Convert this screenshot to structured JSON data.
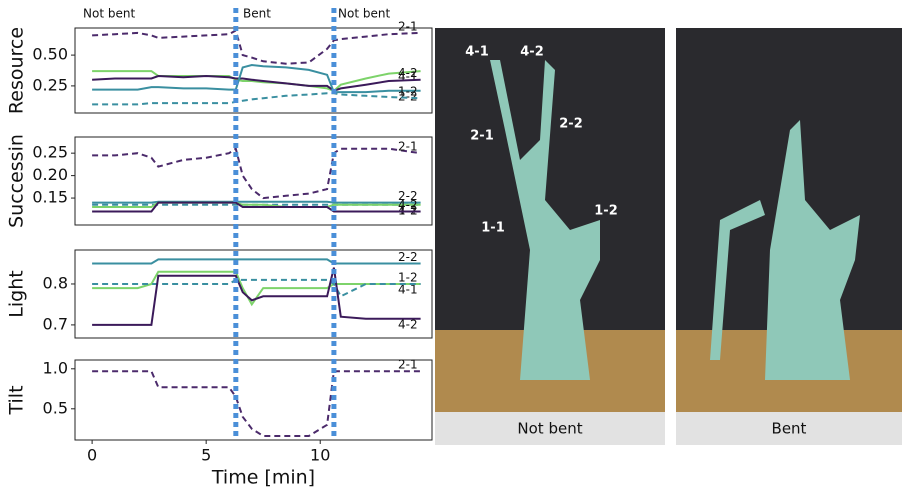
{
  "chart_data": [
    {
      "type": "line",
      "ylabel": "Resource",
      "xlim": [
        -0.75,
        14.9
      ],
      "ylim": [
        0.03,
        0.72
      ],
      "yticks": [
        0.25,
        {
          "value": 0.5,
          "label": "0.50"
        }
      ],
      "x": [
        0,
        1,
        2,
        2.6,
        2.9,
        4,
        5,
        6,
        6.3,
        6.6,
        7,
        7.5,
        8.5,
        9.5,
        10.3,
        10.6,
        10.9,
        12,
        13,
        14.4
      ],
      "series": [
        {
          "name": "2-1",
          "color": "#4b2a6b",
          "dashed": true,
          "values": [
            0.66,
            0.67,
            0.68,
            0.66,
            0.64,
            0.65,
            0.66,
            0.67,
            0.7,
            0.5,
            0.48,
            0.45,
            0.43,
            0.44,
            0.55,
            0.62,
            0.63,
            0.65,
            0.67,
            0.68
          ]
        },
        {
          "name": "4-1",
          "color": "#7dd36a",
          "dashed": false,
          "values": [
            0.37,
            0.37,
            0.37,
            0.37,
            0.33,
            0.33,
            0.33,
            0.33,
            0.3,
            0.29,
            0.29,
            0.28,
            0.27,
            0.25,
            0.23,
            0.21,
            0.26,
            0.31,
            0.35,
            0.37
          ]
        },
        {
          "name": "4-2",
          "color": "#3b1a5a",
          "dashed": false,
          "values": [
            0.3,
            0.31,
            0.31,
            0.31,
            0.33,
            0.32,
            0.33,
            0.32,
            0.31,
            0.31,
            0.3,
            0.29,
            0.27,
            0.25,
            0.25,
            0.21,
            0.23,
            0.26,
            0.29,
            0.3
          ]
        },
        {
          "name": "2-2",
          "color": "#3a8fa0",
          "dashed": false,
          "values": [
            0.22,
            0.22,
            0.22,
            0.24,
            0.24,
            0.23,
            0.23,
            0.22,
            0.22,
            0.4,
            0.42,
            0.41,
            0.4,
            0.38,
            0.34,
            0.2,
            0.2,
            0.2,
            0.21,
            0.21
          ]
        },
        {
          "name": "1-2",
          "color": "#3a8fa0",
          "dashed": true,
          "values": [
            0.1,
            0.1,
            0.1,
            0.11,
            0.11,
            0.11,
            0.11,
            0.11,
            0.12,
            0.13,
            0.14,
            0.15,
            0.17,
            0.18,
            0.19,
            0.19,
            0.18,
            0.17,
            0.16,
            0.15
          ]
        }
      ]
    },
    {
      "type": "line",
      "ylabel": "Successin",
      "xlim": [
        -0.75,
        14.9
      ],
      "ylim": [
        0.09,
        0.286
      ],
      "yticks": [
        0.15,
        {
          "value": 0.2,
          "label": "0.20"
        },
        0.25
      ],
      "x": [
        0,
        1,
        2,
        2.6,
        2.9,
        4,
        5,
        6,
        6.3,
        6.6,
        7,
        7.5,
        8.5,
        9.5,
        10.3,
        10.6,
        10.9,
        12,
        13,
        14.4
      ],
      "series": [
        {
          "name": "2-1",
          "color": "#4b2a6b",
          "dashed": true,
          "values": [
            0.245,
            0.245,
            0.25,
            0.24,
            0.22,
            0.235,
            0.24,
            0.25,
            0.26,
            0.2,
            0.17,
            0.15,
            0.155,
            0.16,
            0.17,
            0.25,
            0.26,
            0.26,
            0.26,
            0.25
          ]
        },
        {
          "name": "1-2",
          "color": "#3a8fa0",
          "dashed": true,
          "values": [
            0.135,
            0.135,
            0.135,
            0.135,
            0.135,
            0.135,
            0.135,
            0.135,
            0.135,
            0.135,
            0.135,
            0.135,
            0.135,
            0.135,
            0.135,
            0.135,
            0.135,
            0.135,
            0.135,
            0.135
          ]
        },
        {
          "name": "2-2",
          "color": "#3a8fa0",
          "dashed": false,
          "values": [
            0.14,
            0.14,
            0.14,
            0.14,
            0.142,
            0.142,
            0.142,
            0.142,
            0.142,
            0.142,
            0.142,
            0.142,
            0.142,
            0.142,
            0.142,
            0.14,
            0.14,
            0.14,
            0.14,
            0.14
          ]
        },
        {
          "name": "4-1",
          "color": "#7dd36a",
          "dashed": false,
          "values": [
            0.13,
            0.13,
            0.13,
            0.13,
            0.14,
            0.14,
            0.14,
            0.14,
            0.14,
            0.135,
            0.135,
            0.135,
            0.13,
            0.13,
            0.13,
            0.135,
            0.135,
            0.135,
            0.135,
            0.135
          ]
        },
        {
          "name": "4-2",
          "color": "#3b1a5a",
          "dashed": false,
          "values": [
            0.12,
            0.12,
            0.12,
            0.12,
            0.14,
            0.14,
            0.14,
            0.14,
            0.14,
            0.13,
            0.13,
            0.13,
            0.13,
            0.13,
            0.13,
            0.12,
            0.12,
            0.12,
            0.12,
            0.12
          ]
        }
      ]
    },
    {
      "type": "line",
      "ylabel": "Light",
      "xlim": [
        -0.75,
        14.9
      ],
      "ylim": [
        0.668,
        0.883
      ],
      "yticks": [
        0.7,
        0.8
      ],
      "x": [
        0,
        1,
        2,
        2.6,
        2.9,
        4,
        5,
        6,
        6.3,
        6.6,
        7,
        7.5,
        8.5,
        9.5,
        10.3,
        10.6,
        10.9,
        12,
        13,
        14.4
      ],
      "series": [
        {
          "name": "2-2",
          "color": "#3a8fa0",
          "dashed": false,
          "values": [
            0.85,
            0.85,
            0.85,
            0.85,
            0.86,
            0.86,
            0.86,
            0.86,
            0.86,
            0.86,
            0.86,
            0.86,
            0.86,
            0.86,
            0.86,
            0.85,
            0.85,
            0.85,
            0.85,
            0.85
          ]
        },
        {
          "name": "4-1",
          "color": "#7dd36a",
          "dashed": false,
          "values": [
            0.79,
            0.79,
            0.79,
            0.8,
            0.83,
            0.83,
            0.83,
            0.83,
            0.83,
            0.79,
            0.75,
            0.79,
            0.79,
            0.79,
            0.79,
            0.8,
            0.8,
            0.8,
            0.8,
            0.8
          ]
        },
        {
          "name": "1-2",
          "color": "#3a8fa0",
          "dashed": true,
          "values": [
            0.8,
            0.8,
            0.8,
            0.8,
            0.8,
            0.8,
            0.8,
            0.8,
            0.81,
            0.81,
            0.81,
            0.81,
            0.81,
            0.81,
            0.81,
            0.8,
            0.77,
            0.8,
            0.8,
            0.8
          ]
        },
        {
          "name": "4-2",
          "color": "#3b1a5a",
          "dashed": false,
          "values": [
            0.7,
            0.7,
            0.7,
            0.7,
            0.82,
            0.82,
            0.82,
            0.82,
            0.82,
            0.78,
            0.76,
            0.77,
            0.77,
            0.77,
            0.77,
            0.84,
            0.72,
            0.715,
            0.715,
            0.715
          ]
        }
      ]
    },
    {
      "type": "line",
      "ylabel": "Tilt",
      "xlabel": "Time [min]",
      "xlim": [
        -0.75,
        14.9
      ],
      "ylim": [
        0.11,
        1.11
      ],
      "xticks": [
        0,
        5,
        10
      ],
      "yticks": [
        0.5,
        {
          "value": 1,
          "label": "1.0"
        }
      ],
      "x": [
        0,
        1,
        2,
        2.6,
        2.9,
        4,
        5,
        6,
        6.3,
        6.6,
        7,
        7.5,
        8.5,
        9.5,
        10.3,
        10.6,
        10.9,
        12,
        13,
        14.4
      ],
      "series": [
        {
          "name": "2-1",
          "color": "#4b2a6b",
          "dashed": true,
          "values": [
            0.97,
            0.97,
            0.97,
            0.97,
            0.77,
            0.77,
            0.77,
            0.77,
            0.65,
            0.4,
            0.25,
            0.16,
            0.16,
            0.16,
            0.3,
            0.97,
            0.97,
            0.97,
            0.97,
            0.97
          ]
        }
      ]
    }
  ],
  "markers": {
    "x": [
      6.3,
      10.6
    ],
    "color": "#4a8fd8",
    "labels": [
      "Not bent",
      "Bent",
      "Not bent"
    ]
  },
  "photos": [
    {
      "caption": "Not bent",
      "labels": [
        "4-1",
        "4-2",
        "2-1",
        "2-2",
        "1-1",
        "1-2"
      ]
    },
    {
      "caption": "Bent"
    }
  ]
}
